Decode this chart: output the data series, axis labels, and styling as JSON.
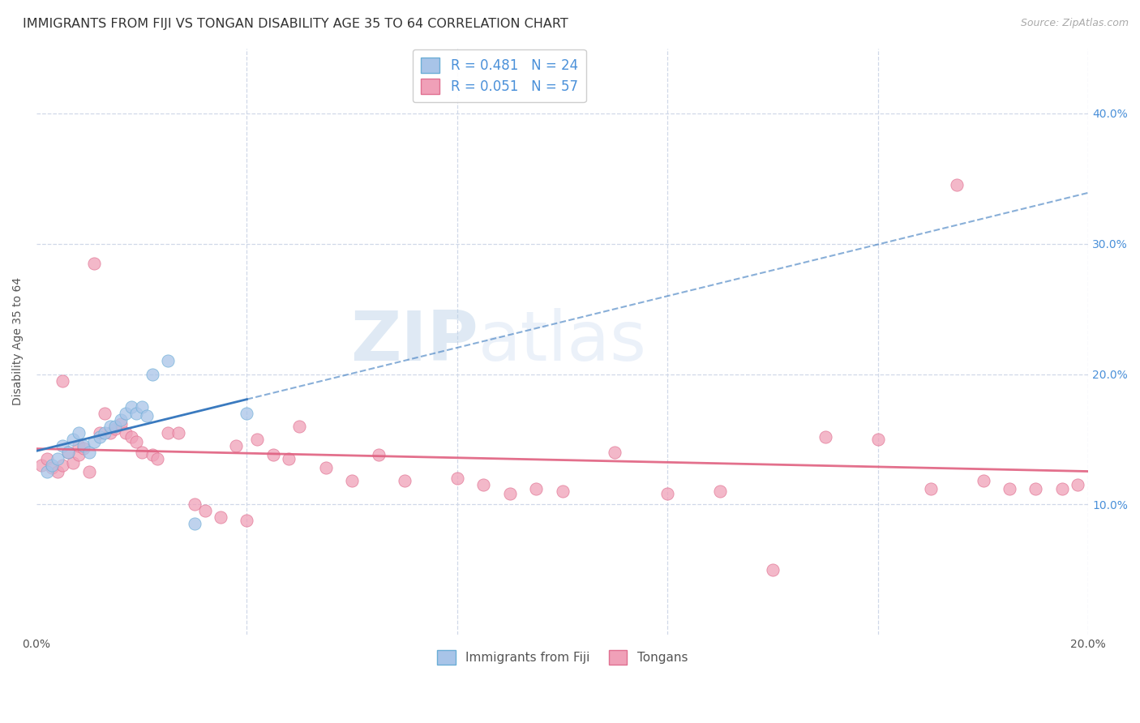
{
  "title": "IMMIGRANTS FROM FIJI VS TONGAN DISABILITY AGE 35 TO 64 CORRELATION CHART",
  "source": "Source: ZipAtlas.com",
  "ylabel": "Disability Age 35 to 64",
  "xlim": [
    0.0,
    0.2
  ],
  "ylim": [
    0.0,
    0.45
  ],
  "fiji_color": "#a8c4e8",
  "fiji_edge_color": "#6baed6",
  "fiji_line_color": "#3a7abf",
  "tongan_color": "#f0a0b8",
  "tongan_edge_color": "#e07090",
  "tongan_line_color": "#e06080",
  "fiji_r": 0.481,
  "fiji_n": 24,
  "tongan_r": 0.051,
  "tongan_n": 57,
  "fiji_scatter_x": [
    0.002,
    0.003,
    0.004,
    0.005,
    0.006,
    0.007,
    0.008,
    0.009,
    0.01,
    0.011,
    0.012,
    0.013,
    0.014,
    0.015,
    0.016,
    0.017,
    0.018,
    0.019,
    0.02,
    0.021,
    0.022,
    0.025,
    0.03,
    0.04
  ],
  "fiji_scatter_y": [
    0.125,
    0.13,
    0.135,
    0.145,
    0.14,
    0.15,
    0.155,
    0.145,
    0.14,
    0.148,
    0.152,
    0.155,
    0.16,
    0.16,
    0.165,
    0.17,
    0.175,
    0.17,
    0.175,
    0.168,
    0.2,
    0.21,
    0.085,
    0.17
  ],
  "tongan_scatter_x": [
    0.001,
    0.002,
    0.003,
    0.004,
    0.005,
    0.005,
    0.006,
    0.007,
    0.008,
    0.008,
    0.009,
    0.01,
    0.011,
    0.012,
    0.013,
    0.014,
    0.015,
    0.016,
    0.017,
    0.018,
    0.019,
    0.02,
    0.022,
    0.023,
    0.025,
    0.027,
    0.03,
    0.032,
    0.035,
    0.038,
    0.04,
    0.042,
    0.045,
    0.048,
    0.05,
    0.055,
    0.06,
    0.065,
    0.07,
    0.08,
    0.085,
    0.09,
    0.095,
    0.1,
    0.11,
    0.12,
    0.13,
    0.14,
    0.15,
    0.16,
    0.17,
    0.175,
    0.18,
    0.185,
    0.19,
    0.195,
    0.198
  ],
  "tongan_scatter_y": [
    0.13,
    0.135,
    0.128,
    0.125,
    0.13,
    0.195,
    0.14,
    0.132,
    0.138,
    0.145,
    0.143,
    0.125,
    0.285,
    0.155,
    0.17,
    0.155,
    0.158,
    0.162,
    0.155,
    0.152,
    0.148,
    0.14,
    0.138,
    0.135,
    0.155,
    0.155,
    0.1,
    0.095,
    0.09,
    0.145,
    0.088,
    0.15,
    0.138,
    0.135,
    0.16,
    0.128,
    0.118,
    0.138,
    0.118,
    0.12,
    0.115,
    0.108,
    0.112,
    0.11,
    0.14,
    0.108,
    0.11,
    0.05,
    0.152,
    0.15,
    0.112,
    0.345,
    0.118,
    0.112,
    0.112,
    0.112,
    0.115
  ],
  "watermark_zip": "ZIP",
  "watermark_atlas": "atlas",
  "background_color": "#ffffff",
  "grid_color": "#d0d8e8",
  "label_color": "#4a90d9"
}
